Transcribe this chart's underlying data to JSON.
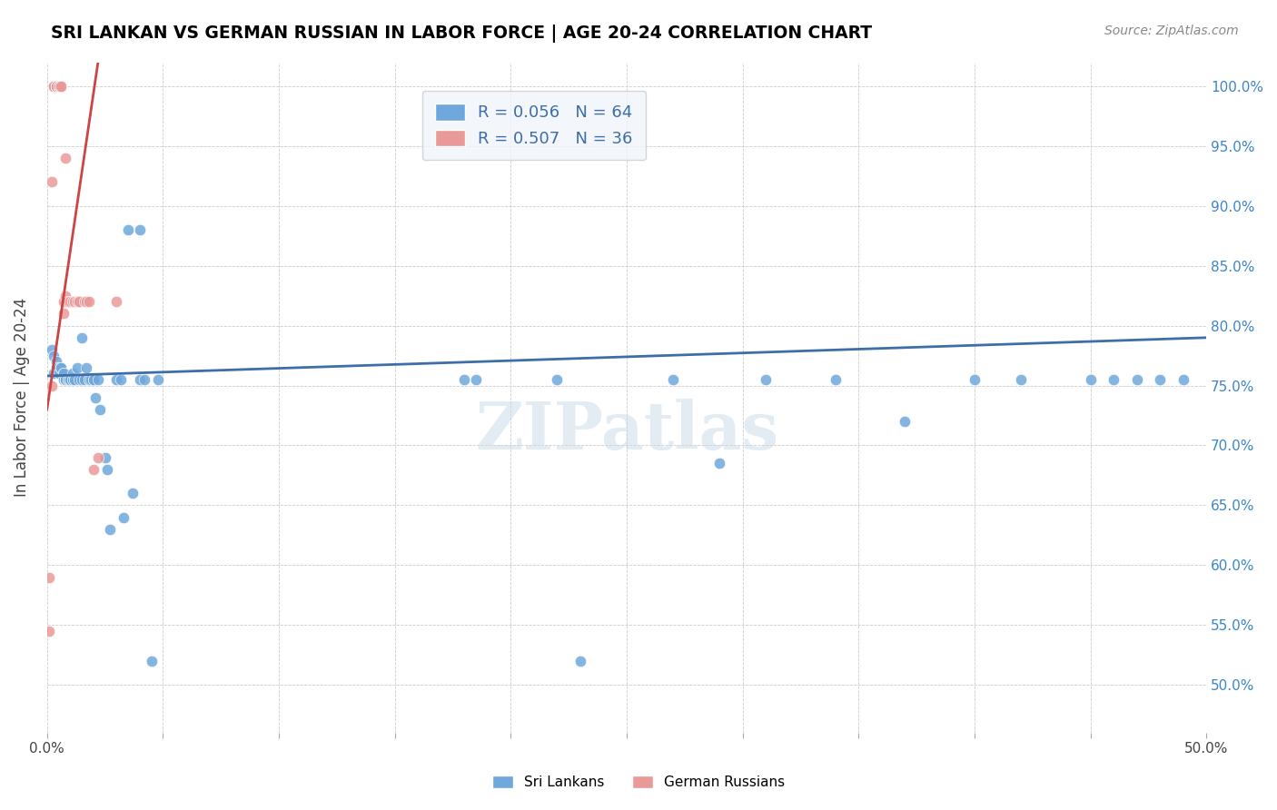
{
  "title": "SRI LANKAN VS GERMAN RUSSIAN IN LABOR FORCE | AGE 20-24 CORRELATION CHART",
  "source": "Source: ZipAtlas.com",
  "xlabel": "",
  "ylabel": "In Labor Force | Age 20-24",
  "xlim": [
    0.0,
    0.5
  ],
  "ylim": [
    0.46,
    1.02
  ],
  "xticks": [
    0.0,
    0.05,
    0.1,
    0.15,
    0.2,
    0.25,
    0.3,
    0.35,
    0.4,
    0.45,
    0.5
  ],
  "xtick_labels": [
    "0.0%",
    "",
    "",
    "",
    "",
    "",
    "",
    "",
    "",
    "",
    "50.0%"
  ],
  "ytick_labels": [
    "50.0%",
    "55.0%",
    "60.0%",
    "65.0%",
    "70.0%",
    "75.0%",
    "80.0%",
    "85.0%",
    "90.0%",
    "95.0%",
    "100.0%"
  ],
  "yticks": [
    0.5,
    0.55,
    0.6,
    0.65,
    0.7,
    0.75,
    0.8,
    0.85,
    0.9,
    0.95,
    1.0
  ],
  "blue_color": "#6fa8dc",
  "pink_color": "#ea9999",
  "blue_line_color": "#3d6ea8",
  "pink_line_color": "#cc4444",
  "legend_box_color": "#f0f4fa",
  "r_blue": 0.056,
  "n_blue": 64,
  "r_pink": 0.507,
  "n_pink": 36,
  "watermark": "ZIPatlas",
  "watermark_color": "#c8d8e8",
  "blue_scatter_x": [
    0.002,
    0.003,
    0.003,
    0.004,
    0.004,
    0.005,
    0.005,
    0.006,
    0.006,
    0.007,
    0.007,
    0.007,
    0.008,
    0.008,
    0.009,
    0.009,
    0.01,
    0.01,
    0.011,
    0.011,
    0.012,
    0.013,
    0.014,
    0.015,
    0.015,
    0.016,
    0.017,
    0.018,
    0.018,
    0.019,
    0.02,
    0.02,
    0.021,
    0.022,
    0.023,
    0.025,
    0.026,
    0.027,
    0.03,
    0.032,
    0.033,
    0.035,
    0.037,
    0.04,
    0.04,
    0.042,
    0.045,
    0.048,
    0.18,
    0.185,
    0.22,
    0.23,
    0.27,
    0.29,
    0.31,
    0.34,
    0.37,
    0.4,
    0.42,
    0.45,
    0.46,
    0.47,
    0.48,
    0.49
  ],
  "blue_scatter_y": [
    0.78,
    0.76,
    0.775,
    0.77,
    0.765,
    0.765,
    0.76,
    0.765,
    0.765,
    0.76,
    0.76,
    0.755,
    0.755,
    0.755,
    0.755,
    0.755,
    0.755,
    0.755,
    0.755,
    0.76,
    0.755,
    0.765,
    0.755,
    0.755,
    0.79,
    0.755,
    0.765,
    0.755,
    0.755,
    0.755,
    0.755,
    0.755,
    0.74,
    0.755,
    0.73,
    0.69,
    0.68,
    0.63,
    0.755,
    0.755,
    0.64,
    0.88,
    0.66,
    0.88,
    0.755,
    0.755,
    0.52,
    0.755,
    0.755,
    0.755,
    0.755,
    0.52,
    0.755,
    0.685,
    0.755,
    0.755,
    0.72,
    0.755,
    0.755,
    0.755,
    0.755,
    0.755,
    0.755,
    0.755
  ],
  "pink_scatter_x": [
    0.001,
    0.001,
    0.002,
    0.002,
    0.003,
    0.003,
    0.003,
    0.004,
    0.004,
    0.004,
    0.004,
    0.005,
    0.005,
    0.005,
    0.005,
    0.005,
    0.006,
    0.006,
    0.006,
    0.007,
    0.007,
    0.008,
    0.008,
    0.009,
    0.01,
    0.011,
    0.012,
    0.013,
    0.014,
    0.014,
    0.016,
    0.017,
    0.018,
    0.02,
    0.022,
    0.03
  ],
  "pink_scatter_y": [
    0.59,
    0.545,
    0.92,
    0.75,
    1.0,
    1.0,
    1.0,
    1.0,
    1.0,
    1.0,
    1.0,
    1.0,
    1.0,
    1.0,
    1.0,
    1.0,
    1.0,
    1.0,
    1.0,
    0.82,
    0.81,
    0.94,
    0.825,
    0.82,
    0.82,
    0.82,
    0.82,
    0.82,
    0.82,
    0.82,
    0.82,
    0.82,
    0.82,
    0.68,
    0.69,
    0.82
  ],
  "blue_trendline_x": [
    0.0,
    0.5
  ],
  "blue_trendline_y": [
    0.758,
    0.79
  ],
  "pink_trendline_x": [
    0.0,
    0.022
  ],
  "pink_trendline_y": [
    0.73,
    1.02
  ]
}
